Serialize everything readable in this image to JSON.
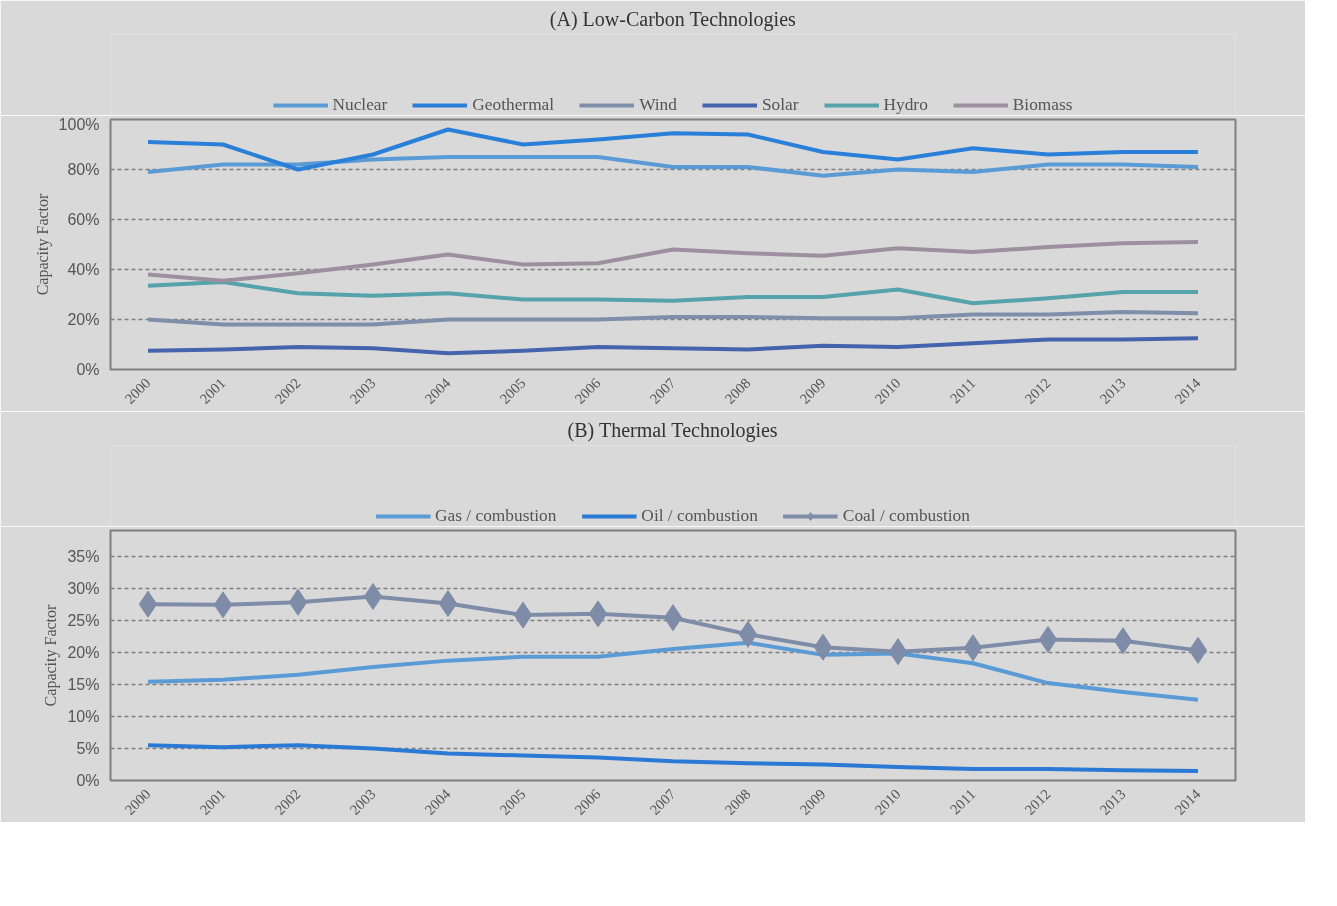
{
  "chart_data": [
    {
      "type": "line",
      "title": "(A) Low-Carbon Technologies",
      "ylabel": "Capacity Factor",
      "categories": [
        "2000",
        "2001",
        "2002",
        "2003",
        "2004",
        "2005",
        "2006",
        "2007",
        "2008",
        "2009",
        "2010",
        "2011",
        "2012",
        "2013",
        "2014"
      ],
      "ylim": [
        0,
        100
      ],
      "yticks": [
        {
          "value": 0,
          "label": "0%"
        },
        {
          "value": 20,
          "label": "20%"
        },
        {
          "value": 40,
          "label": "40%"
        },
        {
          "value": 60,
          "label": "60%"
        },
        {
          "value": 80,
          "label": "80%"
        },
        {
          "value": 100,
          "label": "100%"
        }
      ],
      "grid": "y",
      "legend": "top",
      "marker": "none",
      "line_style": "solid",
      "series": [
        {
          "name": "Nuclear",
          "color": "#5b9bd5",
          "values": [
            79,
            82,
            82,
            84,
            85,
            85,
            85,
            81,
            81,
            77.5,
            80,
            79,
            82,
            82,
            81
          ]
        },
        {
          "name": "Geothermal",
          "color": "#2a7fd9",
          "values": [
            91,
            90,
            80,
            86,
            96,
            90,
            92,
            94.5,
            94,
            87,
            84,
            88.5,
            86,
            87,
            87
          ]
        },
        {
          "name": "Wind",
          "color": "#7f8fa9",
          "values": [
            20,
            18,
            18,
            18,
            20,
            20,
            20,
            21,
            21,
            20.5,
            20.5,
            22,
            22,
            23,
            22.5
          ]
        },
        {
          "name": "Solar",
          "color": "#4664ad",
          "values": [
            7.5,
            8,
            9,
            8.5,
            6.5,
            7.5,
            9,
            8.5,
            8,
            9.5,
            9,
            10.5,
            12,
            12,
            12.5
          ]
        },
        {
          "name": "Hydro",
          "color": "#56a3ab",
          "values": [
            33.5,
            35,
            30.5,
            29.5,
            30.5,
            28,
            28,
            27.5,
            29,
            29,
            32,
            26.5,
            28.5,
            31,
            31
          ]
        },
        {
          "name": "Biomass",
          "color": "#9e8fa0",
          "values": [
            38,
            35.5,
            38.5,
            42,
            46,
            42,
            42.5,
            48,
            46.5,
            45.5,
            48.5,
            47,
            49,
            50.5,
            51
          ]
        }
      ]
    },
    {
      "type": "line",
      "title": "(B) Thermal Technologies",
      "ylabel": "Capacity Factor",
      "categories": [
        "2000",
        "2001",
        "2002",
        "2003",
        "2004",
        "2005",
        "2006",
        "2007",
        "2008",
        "2009",
        "2010",
        "2011",
        "2012",
        "2013",
        "2014"
      ],
      "ylim": [
        0,
        39
      ],
      "yticks": [
        {
          "value": 0,
          "label": "0%"
        },
        {
          "value": 5,
          "label": "5%"
        },
        {
          "value": 10,
          "label": "10%"
        },
        {
          "value": 15,
          "label": "15%"
        },
        {
          "value": 20,
          "label": "20%"
        },
        {
          "value": 25,
          "label": "25%"
        },
        {
          "value": 30,
          "label": "30%"
        },
        {
          "value": 35,
          "label": "35%"
        }
      ],
      "grid": "y",
      "legend": "top",
      "line_style": "solid",
      "series": [
        {
          "name": "Gas / combustion",
          "color": "#5b9bd5",
          "marker": "none",
          "values": [
            15.4,
            15.7,
            16.5,
            17.7,
            18.7,
            19.3,
            19.3,
            20.5,
            21.5,
            19.6,
            19.8,
            18.3,
            15.2,
            13.8,
            12.6
          ]
        },
        {
          "name": "Oil / combustion",
          "color": "#2a7ad5",
          "marker": "none",
          "values": [
            5.5,
            5.2,
            5.5,
            5,
            4.2,
            3.9,
            3.6,
            3,
            2.7,
            2.5,
            2.1,
            1.8,
            1.8,
            1.6,
            1.5
          ]
        },
        {
          "name": "Coal / combustion",
          "color": "#7f8ca8",
          "marker": "diamond",
          "values": [
            27.5,
            27.4,
            27.8,
            28.7,
            27.6,
            25.8,
            26,
            25.4,
            22.8,
            20.8,
            20.1,
            20.7,
            22,
            21.8,
            20.3
          ]
        }
      ]
    }
  ]
}
